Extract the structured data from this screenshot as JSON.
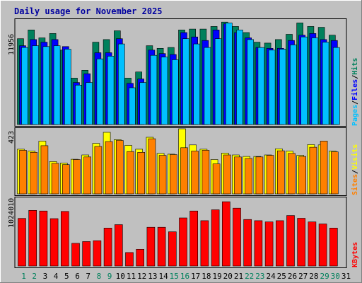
{
  "colors": {
    "background": "#c0c0c0",
    "plot_bg": "#c0c0c0",
    "border": "#000000",
    "title": "#0000a0",
    "hits": "#00805c",
    "files": "#0000ff",
    "pages": "#00c0ff",
    "visits": "#ffff00",
    "sites": "#ff8000",
    "kbytes": "#ff0000",
    "label_weekday": "#000000",
    "label_weekend": "#00805c",
    "axis_label": "#000000"
  },
  "chart_data": [
    {
      "type": "bar",
      "title": "Daily usage for November 2025",
      "categories": [
        "1",
        "2",
        "3",
        "4",
        "5",
        "6",
        "7",
        "8",
        "9",
        "10",
        "11",
        "12",
        "13",
        "14",
        "15",
        "16",
        "17",
        "18",
        "19",
        "20",
        "21",
        "22",
        "23",
        "24",
        "25",
        "26",
        "27",
        "28",
        "29",
        "30",
        "31"
      ],
      "weekend_days": [
        "1",
        "2",
        "8",
        "9",
        "15",
        "16",
        "22",
        "23",
        "29",
        "30"
      ],
      "y_max_label": "11956",
      "ylim": [
        0,
        11956
      ],
      "legend": "right-side-vertical",
      "legend_sep": "/",
      "series": [
        {
          "name": "Hits",
          "color": "#00805c",
          "values": [
            9800,
            10800,
            9900,
            10400,
            8500,
            5300,
            6200,
            9400,
            9700,
            10700,
            5300,
            6000,
            9000,
            8700,
            8800,
            10800,
            10900,
            10900,
            11200,
            11700,
            11200,
            10500,
            9400,
            9300,
            9700,
            10300,
            11600,
            11200,
            11100,
            10200,
            null
          ]
        },
        {
          "name": "Files",
          "color": "#0000ff",
          "values": [
            9000,
            9700,
            9400,
            9700,
            8900,
            4800,
            5800,
            8200,
            8200,
            9800,
            4700,
            5200,
            8500,
            8100,
            8000,
            10500,
            10000,
            9600,
            10800,
            11500,
            10500,
            9900,
            8800,
            8700,
            8700,
            9600,
            10200,
            10400,
            9700,
            9600,
            null
          ]
        },
        {
          "name": "Pages",
          "color": "#00c0ff",
          "values": [
            8800,
            9000,
            8900,
            9000,
            8600,
            4500,
            4800,
            7500,
            7800,
            9200,
            4200,
            4800,
            7900,
            7700,
            7400,
            9800,
            9200,
            8800,
            9800,
            11600,
            10800,
            9700,
            8800,
            8500,
            8600,
            9100,
            10000,
            9900,
            9400,
            8800,
            null
          ]
        }
      ]
    },
    {
      "type": "bar",
      "categories": [
        "1",
        "2",
        "3",
        "4",
        "5",
        "6",
        "7",
        "8",
        "9",
        "10",
        "11",
        "12",
        "13",
        "14",
        "15",
        "16",
        "17",
        "18",
        "19",
        "20",
        "21",
        "22",
        "23",
        "24",
        "25",
        "26",
        "27",
        "28",
        "29",
        "30",
        "31"
      ],
      "y_max_label": "423",
      "ylim": [
        0,
        423
      ],
      "legend": "right-side-vertical",
      "series": [
        {
          "name": "Visits",
          "color": "#ffff00",
          "values": [
            290,
            278,
            343,
            210,
            200,
            225,
            253,
            328,
            400,
            352,
            315,
            290,
            368,
            263,
            258,
            423,
            318,
            290,
            223,
            265,
            253,
            243,
            243,
            253,
            293,
            278,
            250,
            320,
            318,
            278,
            null
          ]
        },
        {
          "name": "Sites",
          "color": "#ff8000",
          "values": [
            283,
            270,
            313,
            198,
            190,
            223,
            240,
            308,
            340,
            347,
            275,
            270,
            358,
            250,
            255,
            300,
            278,
            283,
            195,
            253,
            240,
            230,
            240,
            250,
            280,
            263,
            243,
            303,
            343,
            273,
            null
          ]
        }
      ]
    },
    {
      "type": "bar",
      "categories": [
        "1",
        "2",
        "3",
        "4",
        "5",
        "6",
        "7",
        "8",
        "9",
        "10",
        "11",
        "12",
        "13",
        "14",
        "15",
        "16",
        "17",
        "18",
        "19",
        "20",
        "21",
        "22",
        "23",
        "24",
        "25",
        "26",
        "27",
        "28",
        "29",
        "30",
        "31"
      ],
      "y_max_label": "1024010",
      "ylim": [
        0,
        1024010
      ],
      "legend": "right-side-vertical",
      "series": [
        {
          "name": "KBytes",
          "color": "#ff0000",
          "values": [
            718000,
            840000,
            830000,
            715000,
            823000,
            342000,
            369000,
            382000,
            573000,
            624000,
            204000,
            253000,
            585000,
            585000,
            516000,
            725000,
            830000,
            684000,
            848000,
            970000,
            873000,
            702000,
            684000,
            666000,
            684000,
            762000,
            720000,
            666000,
            635000,
            573000,
            null
          ]
        }
      ]
    }
  ]
}
